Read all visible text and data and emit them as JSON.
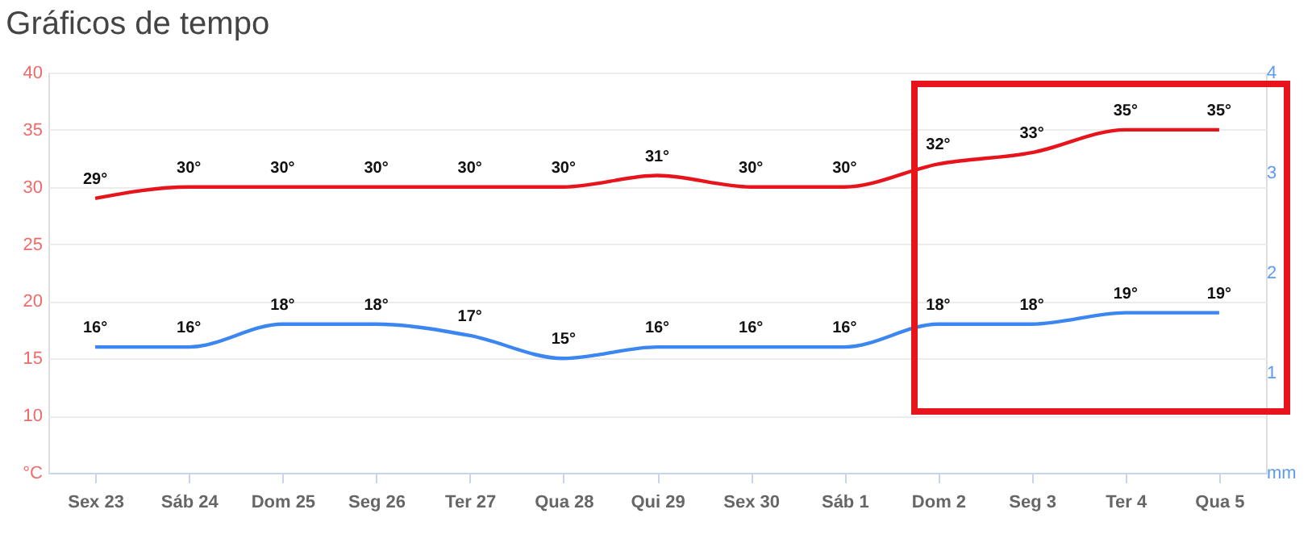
{
  "chart_data": {
    "type": "line",
    "title": "Gráficos de tempo",
    "categories": [
      "Sex 23",
      "Sáb 24",
      "Dom 25",
      "Seg 26",
      "Ter 27",
      "Qua 28",
      "Qui 29",
      "Sex 30",
      "Sáb 1",
      "Dom 2",
      "Seg 3",
      "Ter 4",
      "Qua 5"
    ],
    "series": [
      {
        "color": "#e8141c",
        "values": [
          29,
          30,
          30,
          30,
          30,
          30,
          31,
          30,
          30,
          32,
          33,
          35,
          35
        ],
        "value_labels": [
          "29°",
          "30°",
          "30°",
          "30°",
          "30°",
          "30°",
          "31°",
          "30°",
          "30°",
          "32°",
          "33°",
          "35°",
          "35°"
        ]
      },
      {
        "color": "#3b86f0",
        "values": [
          16,
          16,
          18,
          18,
          17,
          15,
          16,
          16,
          16,
          18,
          18,
          19,
          19
        ],
        "value_labels": [
          "16°",
          "16°",
          "18°",
          "18°",
          "17°",
          "15°",
          "16°",
          "16°",
          "16°",
          "18°",
          "18°",
          "19°",
          "19°"
        ]
      }
    ],
    "ylim": [
      5,
      40
    ],
    "yticks": [
      {
        "value": 5,
        "label": "°C"
      },
      10,
      15,
      20,
      25,
      30,
      35,
      40
    ],
    "y2lim": [
      0,
      4
    ],
    "y2ticks": [
      {
        "value": 0,
        "label": "mm"
      },
      1,
      2,
      3,
      4
    ],
    "grid": "y",
    "legend": false,
    "line_style": "solid",
    "marker": "none"
  }
}
